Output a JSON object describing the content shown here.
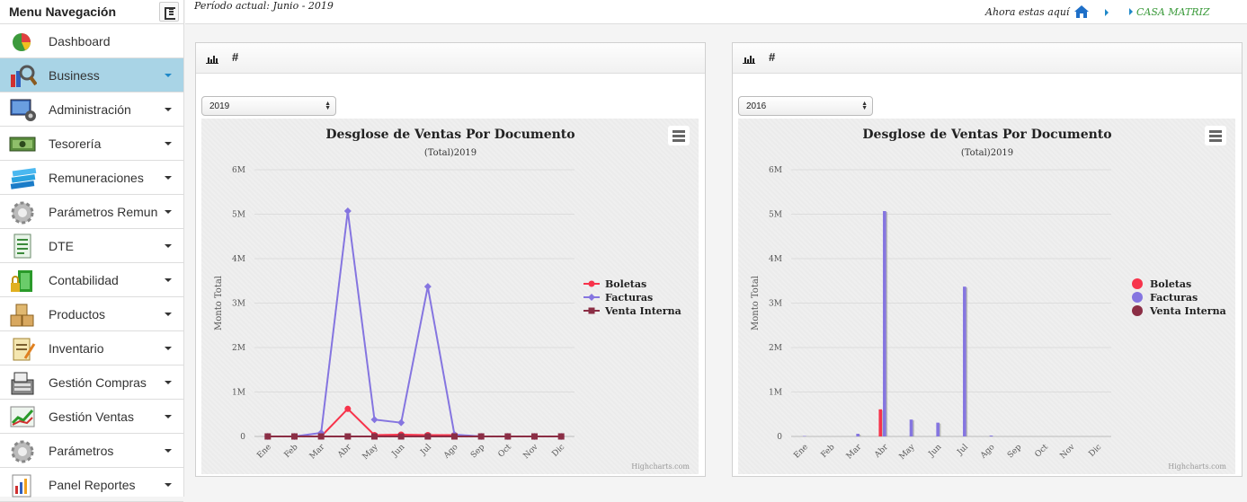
{
  "sidebar": {
    "title": "Menu Navegación",
    "items": [
      {
        "label": "Dashboard",
        "icon": "dashboard-pie-icon",
        "has_caret": false,
        "active": false
      },
      {
        "label": "Business",
        "icon": "business-magnifier-icon",
        "has_caret": true,
        "active": true
      },
      {
        "label": "Administración",
        "icon": "administracion-monitor-icon",
        "has_caret": true,
        "active": false
      },
      {
        "label": "Tesorería",
        "icon": "tesoreria-money-icon",
        "has_caret": true,
        "active": false
      },
      {
        "label": "Remuneraciones",
        "icon": "remuneraciones-books-icon",
        "has_caret": true,
        "active": false
      },
      {
        "label": "Parámetros Remun",
        "icon": "parametros-remun-gear-icon",
        "has_caret": true,
        "active": false
      },
      {
        "label": "DTE",
        "icon": "dte-document-icon",
        "has_caret": true,
        "active": false
      },
      {
        "label": "Contabilidad",
        "icon": "contabilidad-lock-icon",
        "has_caret": true,
        "active": false
      },
      {
        "label": "Productos",
        "icon": "productos-boxes-icon",
        "has_caret": true,
        "active": false
      },
      {
        "label": "Inventario",
        "icon": "inventario-clipboard-icon",
        "has_caret": true,
        "active": false
      },
      {
        "label": "Gestión Compras",
        "icon": "gestion-compras-register-icon",
        "has_caret": true,
        "active": false
      },
      {
        "label": "Gestión Ventas",
        "icon": "gestion-ventas-chart-icon",
        "has_caret": true,
        "active": false
      },
      {
        "label": "Parámetros",
        "icon": "parametros-gear-icon",
        "has_caret": true,
        "active": false
      },
      {
        "label": "Panel Reportes",
        "icon": "panel-reportes-icon",
        "has_caret": true,
        "active": false
      }
    ]
  },
  "topbar": {
    "period": "Período actual: Junio - 2019",
    "here": "Ahora estas aquí",
    "location": "CASA MATRIZ"
  },
  "panels": [
    {
      "hash": "#",
      "year": "2019"
    },
    {
      "hash": "#",
      "year": "2016"
    }
  ],
  "chart_data": [
    {
      "type": "line",
      "title": "Desglose de Ventas Por Documento",
      "subtitle": "(Total)2019",
      "ylabel": "Monto Total",
      "ylim": [
        0,
        6000000
      ],
      "ytick_labels": [
        "0",
        "1M",
        "2M",
        "3M",
        "4M",
        "5M",
        "6M"
      ],
      "categories": [
        "Ene",
        "Feb",
        "Mar",
        "Abr",
        "May",
        "Jun",
        "Jul",
        "Ago",
        "Sep",
        "Oct",
        "Nov",
        "Dic"
      ],
      "legend_position": "right",
      "grid": true,
      "credit": "Highcharts.com",
      "series": [
        {
          "name": "Boletas",
          "color": "#f7334b",
          "marker": "circle",
          "values": [
            0,
            0,
            0,
            620000,
            30000,
            40000,
            30000,
            30000,
            0,
            0,
            0,
            0
          ]
        },
        {
          "name": "Facturas",
          "color": "#8575e0",
          "marker": "diamond",
          "values": [
            0,
            0,
            80000,
            5070000,
            380000,
            310000,
            3370000,
            40000,
            0,
            0,
            0,
            0
          ]
        },
        {
          "name": "Venta Interna",
          "color": "#8b2e45",
          "marker": "square",
          "values": [
            0,
            0,
            0,
            0,
            0,
            0,
            0,
            0,
            0,
            0,
            0,
            0
          ]
        }
      ]
    },
    {
      "type": "bar",
      "title": "Desglose de Ventas Por Documento",
      "subtitle": "(Total)2019",
      "ylabel": "Monto Total",
      "ylim": [
        0,
        6000000
      ],
      "ytick_labels": [
        "0",
        "1M",
        "2M",
        "3M",
        "4M",
        "5M",
        "6M"
      ],
      "categories": [
        "Ene",
        "Feb",
        "Mar",
        "Abr",
        "May",
        "Jun",
        "Jul",
        "Ago",
        "Sep",
        "Oct",
        "Nov",
        "Dic"
      ],
      "legend_position": "right",
      "grid": true,
      "credit": "Highcharts.com",
      "series": [
        {
          "name": "Boletas",
          "color": "#f7334b",
          "values": [
            0,
            0,
            0,
            610000,
            0,
            0,
            0,
            0,
            0,
            0,
            0,
            0
          ]
        },
        {
          "name": "Facturas",
          "color": "#8575e0",
          "values": [
            10000,
            0,
            60000,
            5070000,
            380000,
            310000,
            3370000,
            20000,
            0,
            0,
            0,
            0
          ]
        },
        {
          "name": "Venta Interna",
          "color": "#8b2e45",
          "values": [
            0,
            0,
            0,
            0,
            0,
            0,
            0,
            0,
            0,
            0,
            0,
            0
          ]
        }
      ]
    }
  ]
}
